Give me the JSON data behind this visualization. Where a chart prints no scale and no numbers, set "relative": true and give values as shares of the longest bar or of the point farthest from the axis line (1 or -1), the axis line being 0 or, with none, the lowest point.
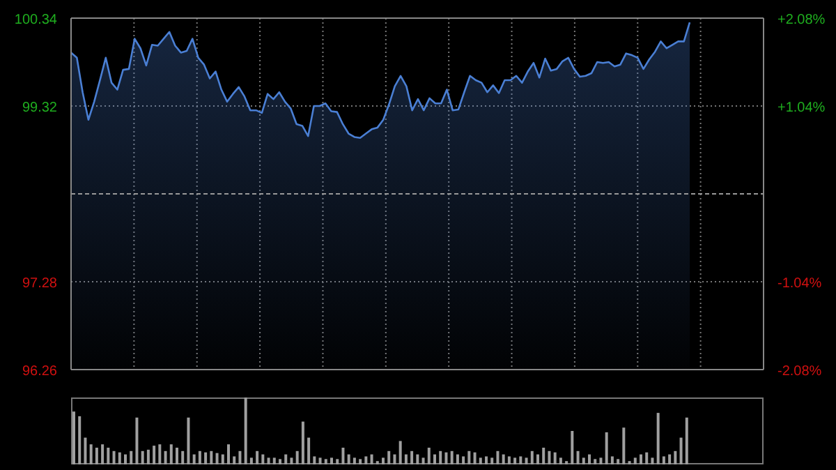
{
  "chart_data": [
    {
      "type": "area",
      "categories": [
        null,
        null,
        null,
        null,
        null,
        null,
        null,
        null,
        null,
        null,
        null,
        null,
        null,
        null,
        null,
        null,
        null,
        null,
        null,
        null,
        null,
        null,
        null,
        null,
        null,
        null,
        null,
        null,
        null,
        null,
        null,
        null,
        null,
        null,
        null,
        null,
        null,
        null,
        null,
        null,
        null,
        null,
        null,
        null,
        null,
        null,
        null,
        null,
        null,
        null,
        null,
        null,
        null,
        null,
        null,
        null,
        null,
        null,
        null,
        null,
        null,
        null,
        null,
        null,
        null,
        null,
        null,
        null,
        null,
        null,
        null,
        null,
        null,
        null,
        null,
        null,
        null,
        null,
        null,
        null,
        null,
        null,
        null,
        null,
        null,
        null,
        null,
        null,
        null,
        null,
        null,
        null,
        null,
        null,
        null,
        null,
        null,
        null,
        null,
        null,
        null,
        null,
        null,
        null,
        null,
        null,
        null,
        null
      ],
      "series": [
        {
          "color": "#4a7fd4",
          "values": [
            99.94,
            99.88,
            99.48,
            99.16,
            99.37,
            99.62,
            99.88,
            99.59,
            99.51,
            99.74,
            99.75,
            100.1,
            99.99,
            99.79,
            100.03,
            100.02,
            100.1,
            100.18,
            100.02,
            99.94,
            99.96,
            100.1,
            99.88,
            99.8,
            99.64,
            99.72,
            99.51,
            99.37,
            99.46,
            99.54,
            99.43,
            99.27,
            99.27,
            99.24,
            99.46,
            99.4,
            99.48,
            99.37,
            99.29,
            99.11,
            99.09,
            98.97,
            99.32,
            99.32,
            99.35,
            99.26,
            99.25,
            99.11,
            99.0,
            98.96,
            98.95,
            99.0,
            99.05,
            99.07,
            99.16,
            99.34,
            99.55,
            99.67,
            99.55,
            99.27,
            99.4,
            99.27,
            99.41,
            99.35,
            99.35,
            99.51,
            99.27,
            99.28,
            99.48,
            99.67,
            99.62,
            99.59,
            99.48,
            99.56,
            99.47,
            99.62,
            99.62,
            99.67,
            99.59,
            99.72,
            99.82,
            99.65,
            99.87,
            99.73,
            99.75,
            99.84,
            99.88,
            99.75,
            99.66,
            99.67,
            99.7,
            99.83,
            99.82,
            99.83,
            99.78,
            99.8,
            99.93,
            99.91,
            99.88,
            99.75,
            99.86,
            99.95,
            100.07,
            99.99,
            100.03,
            100.07,
            100.07,
            100.29
          ]
        }
      ],
      "ylim": [
        96.26,
        100.34
      ],
      "yticks": [
        100.34,
        99.32,
        97.28,
        96.26
      ],
      "y2lim": [
        -2.08,
        2.08
      ],
      "y2ticks": [
        {
          "value": 2.08,
          "label": "+2.08%"
        },
        {
          "value": 1.04,
          "label": "+1.04%"
        },
        {
          "value": -1.04,
          "label": "-1.04%"
        },
        {
          "value": -2.08,
          "label": "-2.08%"
        }
      ],
      "ref_lines": [
        {
          "axis": "y",
          "value": 98.3,
          "color": "#999999",
          "line_style": "dashed"
        }
      ],
      "grid": true,
      "tick_labels": "y"
    },
    {
      "type": "bar",
      "relative": true,
      "categories": [
        null,
        null,
        null,
        null,
        null,
        null,
        null,
        null,
        null,
        null,
        null,
        null,
        null,
        null,
        null,
        null,
        null,
        null,
        null,
        null,
        null,
        null,
        null,
        null,
        null,
        null,
        null,
        null,
        null,
        null,
        null,
        null,
        null,
        null,
        null,
        null,
        null,
        null,
        null,
        null,
        null,
        null,
        null,
        null,
        null,
        null,
        null,
        null,
        null,
        null,
        null,
        null,
        null,
        null,
        null,
        null,
        null,
        null,
        null,
        null,
        null,
        null,
        null,
        null,
        null,
        null,
        null,
        null,
        null,
        null,
        null,
        null,
        null,
        null,
        null,
        null,
        null,
        null,
        null,
        null,
        null,
        null,
        null,
        null,
        null,
        null,
        null,
        null,
        null,
        null,
        null,
        null,
        null,
        null,
        null,
        null,
        null,
        null,
        null,
        null,
        null,
        null,
        null,
        null,
        null,
        null,
        null,
        null
      ],
      "series": [
        {
          "color": "#a0a0a0",
          "values": [
            0.79,
            0.72,
            0.4,
            0.3,
            0.25,
            0.3,
            0.25,
            0.2,
            0.18,
            0.15,
            0.2,
            0.7,
            0.2,
            0.22,
            0.28,
            0.3,
            0.2,
            0.3,
            0.25,
            0.2,
            0.7,
            0.15,
            0.2,
            0.18,
            0.2,
            0.17,
            0.15,
            0.3,
            0.12,
            0.2,
            1,
            0.1,
            0.2,
            0.15,
            0.1,
            0.1,
            0.08,
            0.15,
            0.1,
            0.2,
            0.64,
            0.4,
            0.12,
            0.1,
            0.08,
            0.1,
            0.08,
            0.25,
            0.15,
            0.1,
            0.08,
            0.12,
            0.15,
            0.05,
            0.1,
            0.2,
            0.15,
            0.35,
            0.15,
            0.2,
            0.15,
            0.1,
            0.25,
            0.15,
            0.2,
            0.18,
            0.2,
            0.15,
            0.12,
            0.2,
            0.18,
            0.1,
            0.12,
            0.1,
            0.2,
            0.15,
            0.12,
            0.1,
            0.12,
            0.1,
            0.2,
            0.15,
            0.25,
            0.2,
            0.18,
            0.1,
            0.05,
            0.5,
            0.2,
            0.1,
            0.15,
            0.08,
            0.1,
            0.48,
            0.12,
            0.08,
            0.55,
            0.05,
            0.1,
            0.15,
            0.18,
            0.1,
            0.77,
            0.12,
            0.15,
            0.2,
            0.4,
            0.7
          ]
        }
      ],
      "tick_labels": false
    }
  ]
}
